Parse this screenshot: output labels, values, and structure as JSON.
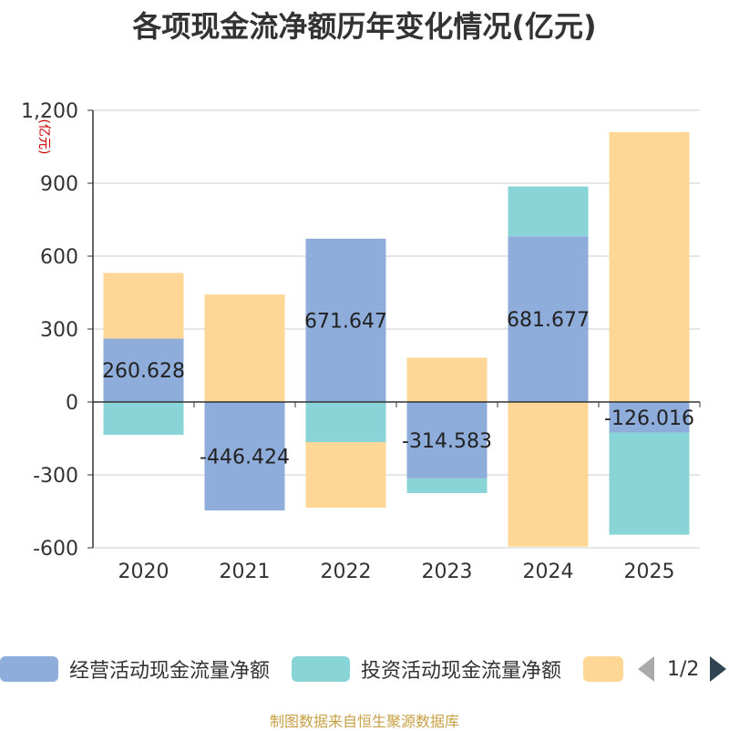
{
  "title": "各项现金流净额历年变化情况(亿元)",
  "source": "制图数据来自恒生聚源数据库",
  "pager": {
    "text": "1/2"
  },
  "colors": {
    "operating": "#8eaddb",
    "investing": "#88d4d6",
    "financing": "#fed797"
  },
  "chart_data": {
    "type": "bar",
    "stacked": true,
    "title": "各项现金流净额历年变化情况(亿元)",
    "ylabel": "(亿元)",
    "ylim": [
      -600,
      1200
    ],
    "yticks": [
      -600,
      -300,
      0,
      300,
      600,
      900,
      1200
    ],
    "ytick_labels": [
      "-600",
      "-300",
      "0",
      "300",
      "600",
      "900",
      "1,200"
    ],
    "categories": [
      "2020",
      "2021",
      "2022",
      "2023",
      "2024",
      "2025"
    ],
    "grid": true,
    "legend_position": "bottom",
    "series": [
      {
        "name": "经营活动现金流量净额",
        "color": "#8eaddb",
        "values": [
          260.628,
          -446.424,
          671.647,
          -314.583,
          681.677,
          -126.016
        ]
      },
      {
        "name": "投资活动现金流量净额",
        "color": "#88d4d6",
        "values": [
          -135,
          0,
          -165,
          -60,
          205,
          -420
        ]
      },
      {
        "name": "",
        "color": "#fed797",
        "values": [
          270,
          442,
          -270,
          182,
          -595,
          1110
        ]
      }
    ],
    "data_labels": [
      "260.628",
      "-446.424",
      "671.647",
      "-314.583",
      "681.677",
      "-126.016"
    ]
  }
}
